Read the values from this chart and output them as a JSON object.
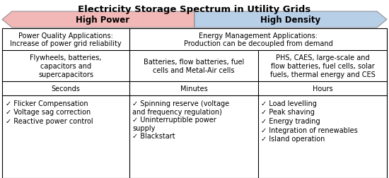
{
  "title": "Electricity Storage Spectrum in Utility Grids",
  "arrow_left_label": "High Power",
  "arrow_right_label": "High Density",
  "arrow_left_color": "#f2b8b8",
  "arrow_right_color": "#b8cfe8",
  "col1_app": "Power Quality Applications:\nIncrease of power grid reliability",
  "col2_app": "Energy Management Applications:\nProduction can be decoupled from demand",
  "col1_tech": "Flywheels, batteries,\ncapacitors and\nsupercapacitors",
  "col2_tech": "Batteries, flow batteries, fuel\ncells and Metal-Air cells",
  "col3_tech": "PHS, CAES, large-scale and\nflow batteries, fuel cells, solar\nfuels, thermal energy and CES",
  "col1_time": "Seconds",
  "col2_time": "Minutes",
  "col3_time": "Hours",
  "col1_items": [
    "Flicker Compensation",
    "Voltage sag correction",
    "Reactive power control"
  ],
  "col2_items": [
    "Spinning reserve (voltage\nand frequency regulation)",
    "Uninterruptible power\nsupply",
    "Blackstart"
  ],
  "col3_items": [
    "Load levelling",
    "Peak shaving",
    "Energy trading",
    "Integration of renewables",
    "Island operation"
  ],
  "check": "✓",
  "bg_color": "#ffffff",
  "border_color": "#000000",
  "text_color": "#000000",
  "fontsize_title": 9.5,
  "fontsize_arrow": 8.5,
  "fontsize_body": 7.0
}
